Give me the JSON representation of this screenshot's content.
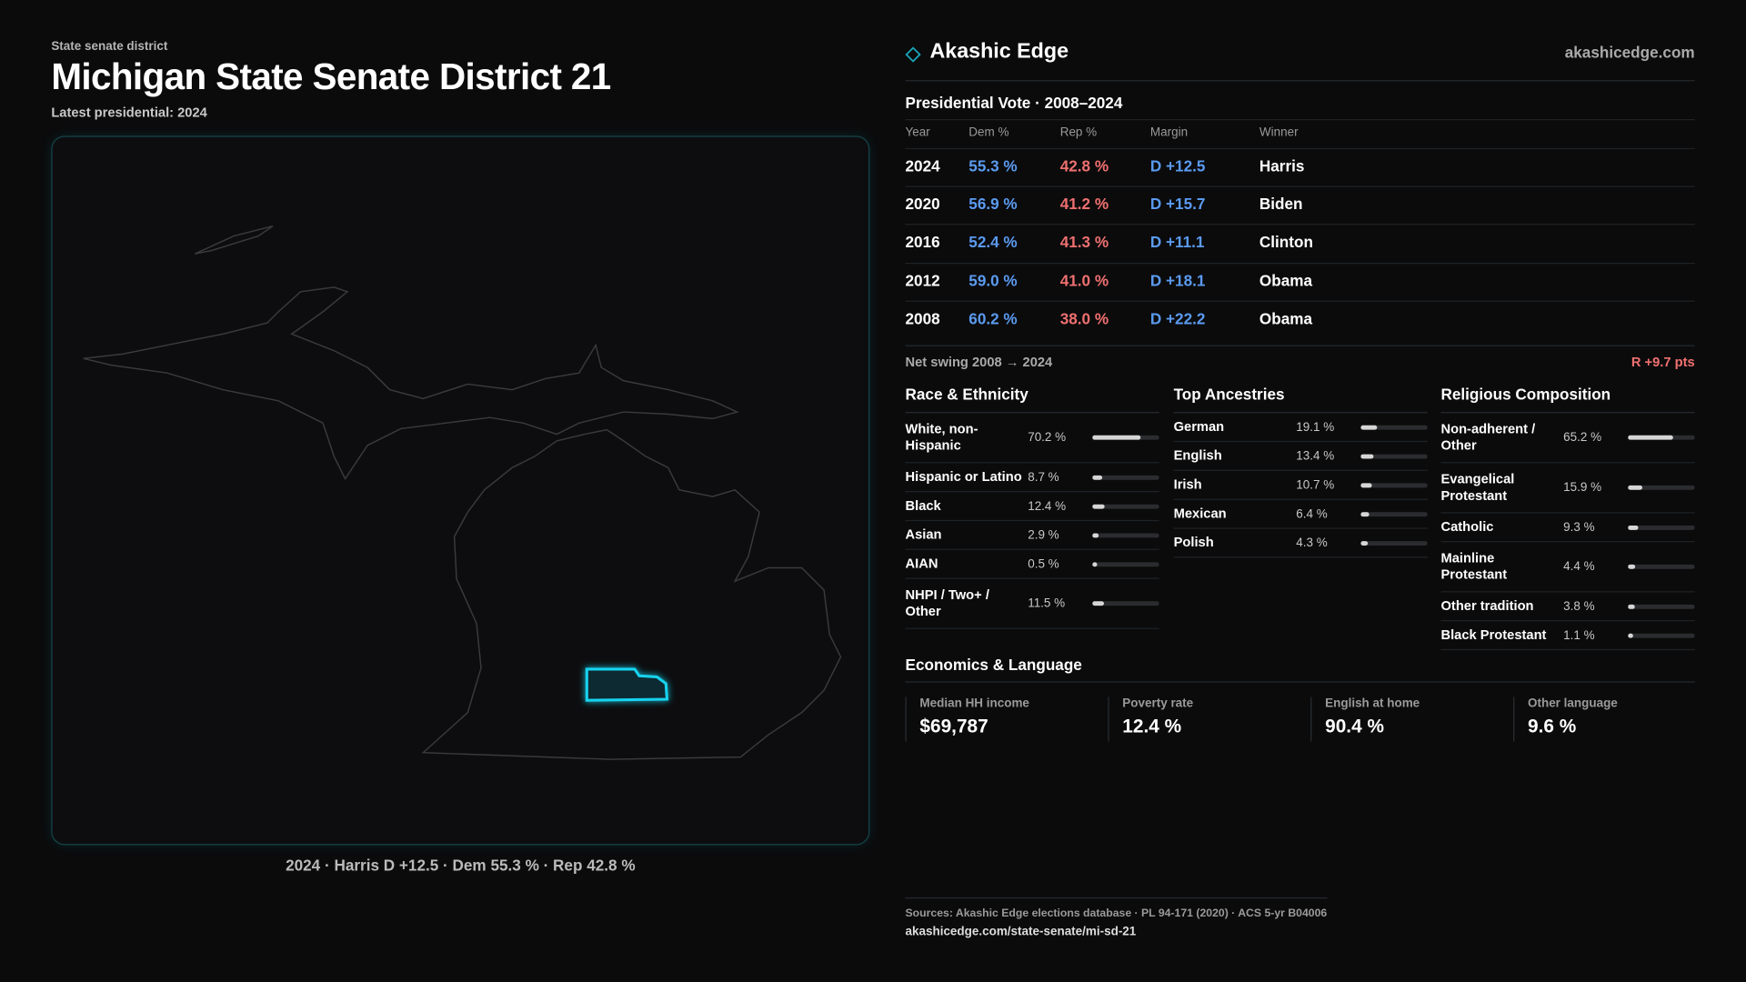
{
  "header": {
    "eyebrow": "State senate district",
    "title": "Michigan State Senate District 21",
    "subtitle": "Latest presidential: 2024"
  },
  "map": {
    "caption": "2024 · Harris D +12.5 · Dem 55.3 % · Rep 42.8 %"
  },
  "brand": {
    "name": "Akashic Edge",
    "url": "akashicedge.com"
  },
  "vote_table": {
    "title": "Presidential Vote · 2008–2024",
    "columns": [
      "Year",
      "Dem %",
      "Rep %",
      "Margin",
      "Winner"
    ],
    "rows": [
      [
        "2024",
        "55.3 %",
        "42.8 %",
        "D +12.5",
        "Harris"
      ],
      [
        "2020",
        "56.9 %",
        "41.2 %",
        "D +15.7",
        "Biden"
      ],
      [
        "2016",
        "52.4 %",
        "41.3 %",
        "D +11.1",
        "Clinton"
      ],
      [
        "2012",
        "59.0 %",
        "41.0 %",
        "D +18.1",
        "Obama"
      ],
      [
        "2008",
        "60.2 %",
        "38.0 %",
        "D +22.2",
        "Obama"
      ]
    ]
  },
  "swing": {
    "label": "Net swing 2008 → 2024",
    "value": "R +9.7 pts"
  },
  "panels": [
    {
      "title": "Race & Ethnicity",
      "rows": [
        {
          "label": "White, non-Hispanic",
          "value": 70.2,
          "value_label": "70.2 %"
        },
        {
          "label": "Hispanic or Latino",
          "value": 8.7,
          "value_label": "8.7 %"
        },
        {
          "label": "Black",
          "value": 12.4,
          "value_label": "12.4 %"
        },
        {
          "label": "Asian",
          "value": 2.9,
          "value_label": "2.9 %"
        },
        {
          "label": "AIAN",
          "value": 0.5,
          "value_label": "0.5 %"
        },
        {
          "label": "NHPI / Two+ / Other",
          "value": 11.5,
          "value_label": "11.5 %"
        }
      ]
    },
    {
      "title": "Top Ancestries",
      "rows": [
        {
          "label": "German",
          "value": 19.1,
          "value_label": "19.1 %"
        },
        {
          "label": "English",
          "value": 13.4,
          "value_label": "13.4 %"
        },
        {
          "label": "Irish",
          "value": 10.7,
          "value_label": "10.7 %"
        },
        {
          "label": "Mexican",
          "value": 6.4,
          "value_label": "6.4 %"
        },
        {
          "label": "Polish",
          "value": 4.3,
          "value_label": "4.3 %"
        }
      ]
    },
    {
      "title": "Religious Composition",
      "rows": [
        {
          "label": "Non-adherent / Other",
          "value": 65.2,
          "value_label": "65.2 %"
        },
        {
          "label": "Evangelical Protestant",
          "value": 15.9,
          "value_label": "15.9 %"
        },
        {
          "label": "Catholic",
          "value": 9.3,
          "value_label": "9.3 %"
        },
        {
          "label": "Mainline Protestant",
          "value": 4.4,
          "value_label": "4.4 %"
        },
        {
          "label": "Other tradition",
          "value": 3.8,
          "value_label": "3.8 %"
        },
        {
          "label": "Black Protestant",
          "value": 1.1,
          "value_label": "1.1 %"
        }
      ]
    }
  ],
  "economics": {
    "title": "Economics & Language",
    "stats": [
      {
        "label": "Median HH income",
        "value": "$69,787"
      },
      {
        "label": "Poverty rate",
        "value": "12.4 %"
      },
      {
        "label": "English at home",
        "value": "90.4 %"
      },
      {
        "label": "Other language",
        "value": "9.6 %"
      }
    ]
  },
  "footer": {
    "sources": "Sources: Akashic Edge elections database · PL 94-171 (2020) · ACS 5-yr B04006",
    "link": "akashicedge.com/state-senate/mi-sd-21"
  }
}
